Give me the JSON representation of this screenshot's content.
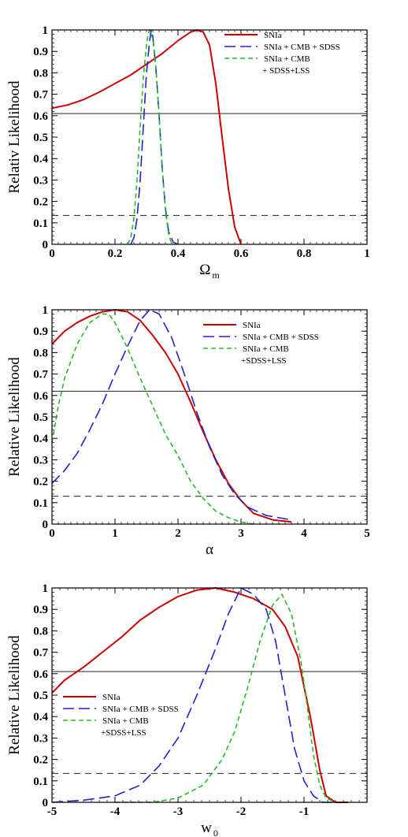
{
  "chart_data": [
    {
      "type": "line",
      "title": "",
      "xlabel": "Ω",
      "xlabel_sub": "m",
      "ylabel": "Relativ Likelihood",
      "xlim": [
        0,
        1
      ],
      "ylim": [
        0,
        1
      ],
      "xticks": [
        0,
        0.2,
        0.4,
        0.6,
        0.8,
        1
      ],
      "xtick_labels": [
        "0",
        "0.2",
        "0.4",
        "0.6",
        "0.8",
        "1"
      ],
      "yticks": [
        0,
        0.1,
        0.2,
        0.3,
        0.4,
        0.5,
        0.6,
        0.7,
        0.8,
        0.9,
        1
      ],
      "ytick_labels": [
        "0",
        "0.1",
        "0.2",
        "0.3",
        "0.4",
        "0.5",
        "0.6",
        "0.7",
        "0.8",
        "0.9",
        "1"
      ],
      "hlines": [
        {
          "y": 0.61,
          "style": "solid"
        },
        {
          "y": 0.135,
          "style": "dashed"
        }
      ],
      "legend": {
        "position": "top-right"
      },
      "series": [
        {
          "name": "SNIa",
          "color": "#cc0000",
          "dash": "solid",
          "points": [
            [
              0,
              0.635
            ],
            [
              0.05,
              0.65
            ],
            [
              0.1,
              0.675
            ],
            [
              0.15,
              0.71
            ],
            [
              0.2,
              0.75
            ],
            [
              0.25,
              0.79
            ],
            [
              0.3,
              0.84
            ],
            [
              0.35,
              0.89
            ],
            [
              0.4,
              0.95
            ],
            [
              0.44,
              0.99
            ],
            [
              0.46,
              1.0
            ],
            [
              0.48,
              0.99
            ],
            [
              0.5,
              0.93
            ],
            [
              0.52,
              0.75
            ],
            [
              0.54,
              0.5
            ],
            [
              0.56,
              0.26
            ],
            [
              0.58,
              0.08
            ],
            [
              0.6,
              0.0
            ]
          ]
        },
        {
          "name": "SNIa + CMB + SDSS",
          "color": "#2222cc",
          "dash": "long",
          "points": [
            [
              0.25,
              0.0
            ],
            [
              0.26,
              0.03
            ],
            [
              0.27,
              0.12
            ],
            [
              0.28,
              0.3
            ],
            [
              0.29,
              0.55
            ],
            [
              0.3,
              0.8
            ],
            [
              0.31,
              0.95
            ],
            [
              0.315,
              1.0
            ],
            [
              0.32,
              0.97
            ],
            [
              0.33,
              0.82
            ],
            [
              0.34,
              0.6
            ],
            [
              0.35,
              0.35
            ],
            [
              0.36,
              0.17
            ],
            [
              0.37,
              0.06
            ],
            [
              0.385,
              0.01
            ],
            [
              0.4,
              0.0
            ]
          ]
        },
        {
          "name": "SNIa + CMB\n+ SDSS+LSS",
          "color": "#22bb22",
          "dash": "short",
          "points": [
            [
              0.24,
              0.0
            ],
            [
              0.25,
              0.03
            ],
            [
              0.26,
              0.12
            ],
            [
              0.27,
              0.3
            ],
            [
              0.28,
              0.55
            ],
            [
              0.29,
              0.78
            ],
            [
              0.3,
              0.93
            ],
            [
              0.305,
              0.98
            ],
            [
              0.31,
              1.0
            ],
            [
              0.32,
              0.96
            ],
            [
              0.33,
              0.82
            ],
            [
              0.34,
              0.6
            ],
            [
              0.35,
              0.35
            ],
            [
              0.36,
              0.16
            ],
            [
              0.37,
              0.05
            ],
            [
              0.38,
              0.0
            ]
          ]
        }
      ]
    },
    {
      "type": "line",
      "title": "",
      "xlabel": "α",
      "xlabel_sub": "",
      "ylabel": "Relative Likelihood",
      "xlim": [
        0,
        5
      ],
      "ylim": [
        0,
        1
      ],
      "xticks": [
        0,
        1,
        2,
        3,
        4,
        5
      ],
      "xtick_labels": [
        "0",
        "1",
        "2",
        "3",
        "4",
        "5"
      ],
      "yticks": [
        0,
        0.1,
        0.2,
        0.3,
        0.4,
        0.5,
        0.6,
        0.7,
        0.8,
        0.9,
        1
      ],
      "ytick_labels": [
        "0",
        "0.1",
        "0.2",
        "0.3",
        "0.4",
        "0.5",
        "0.6",
        "0.7",
        "0.8",
        "0.9",
        "1"
      ],
      "hlines": [
        {
          "y": 0.62,
          "style": "solid"
        },
        {
          "y": 0.13,
          "style": "dashed"
        }
      ],
      "legend": {
        "position": "top-right"
      },
      "series": [
        {
          "name": "SNIa",
          "color": "#cc0000",
          "dash": "solid",
          "points": [
            [
              0,
              0.84
            ],
            [
              0.2,
              0.9
            ],
            [
              0.4,
              0.94
            ],
            [
              0.6,
              0.97
            ],
            [
              0.8,
              0.99
            ],
            [
              1.0,
              1.0
            ],
            [
              1.2,
              0.99
            ],
            [
              1.4,
              0.95
            ],
            [
              1.6,
              0.88
            ],
            [
              1.8,
              0.8
            ],
            [
              2.0,
              0.7
            ],
            [
              2.2,
              0.57
            ],
            [
              2.4,
              0.43
            ],
            [
              2.6,
              0.3
            ],
            [
              2.8,
              0.19
            ],
            [
              3.0,
              0.11
            ],
            [
              3.2,
              0.05
            ],
            [
              3.5,
              0.02
            ],
            [
              3.8,
              0.01
            ]
          ]
        },
        {
          "name": "SNIa + CMB + SDSS",
          "color": "#2222cc",
          "dash": "long",
          "points": [
            [
              0,
              0.19
            ],
            [
              0.2,
              0.25
            ],
            [
              0.4,
              0.33
            ],
            [
              0.6,
              0.44
            ],
            [
              0.8,
              0.56
            ],
            [
              1.0,
              0.7
            ],
            [
              1.2,
              0.83
            ],
            [
              1.4,
              0.95
            ],
            [
              1.55,
              1.0
            ],
            [
              1.7,
              0.98
            ],
            [
              1.9,
              0.87
            ],
            [
              2.1,
              0.7
            ],
            [
              2.3,
              0.52
            ],
            [
              2.5,
              0.36
            ],
            [
              2.7,
              0.23
            ],
            [
              2.9,
              0.14
            ],
            [
              3.1,
              0.08
            ],
            [
              3.4,
              0.04
            ],
            [
              3.8,
              0.02
            ]
          ]
        },
        {
          "name": "SNIa + CMB\n+SDSS+LSS",
          "color": "#22bb22",
          "dash": "short",
          "points": [
            [
              0,
              0.38
            ],
            [
              0.1,
              0.55
            ],
            [
              0.2,
              0.68
            ],
            [
              0.4,
              0.84
            ],
            [
              0.6,
              0.94
            ],
            [
              0.8,
              0.98
            ],
            [
              0.9,
              0.98
            ],
            [
              1.0,
              0.94
            ],
            [
              1.2,
              0.82
            ],
            [
              1.4,
              0.68
            ],
            [
              1.6,
              0.55
            ],
            [
              1.8,
              0.42
            ],
            [
              2.0,
              0.32
            ],
            [
              2.2,
              0.2
            ],
            [
              2.4,
              0.12
            ],
            [
              2.6,
              0.06
            ],
            [
              2.8,
              0.03
            ],
            [
              3.0,
              0.01
            ],
            [
              3.2,
              0.0
            ]
          ]
        }
      ]
    },
    {
      "type": "line",
      "title": "",
      "xlabel": "w",
      "xlabel_sub": "0",
      "ylabel": "Relative Likelihood",
      "xlim": [
        -5,
        0
      ],
      "ylim": [
        0,
        1
      ],
      "xticks": [
        -5,
        -4,
        -3,
        -2,
        -1
      ],
      "xtick_labels": [
        "-5",
        "-4",
        "-3",
        "-2",
        "-1"
      ],
      "yticks": [
        0,
        0.1,
        0.2,
        0.3,
        0.4,
        0.5,
        0.6,
        0.7,
        0.8,
        0.9,
        1
      ],
      "ytick_labels": [
        "0",
        "0.1",
        "0.2",
        "0.3",
        "0.4",
        "0.5",
        "0.6",
        "0.7",
        "0.8",
        "0.9",
        "1"
      ],
      "hlines": [
        {
          "y": 0.61,
          "style": "solid"
        },
        {
          "y": 0.135,
          "style": "dashed"
        }
      ],
      "legend": {
        "position": "center-left"
      },
      "series": [
        {
          "name": "SNIa",
          "color": "#cc0000",
          "dash": "solid",
          "points": [
            [
              -5,
              0.51
            ],
            [
              -4.8,
              0.57
            ],
            [
              -4.5,
              0.63
            ],
            [
              -4.2,
              0.7
            ],
            [
              -3.9,
              0.77
            ],
            [
              -3.6,
              0.85
            ],
            [
              -3.3,
              0.91
            ],
            [
              -3.0,
              0.96
            ],
            [
              -2.7,
              0.99
            ],
            [
              -2.4,
              1.0
            ],
            [
              -2.1,
              0.98
            ],
            [
              -1.8,
              0.95
            ],
            [
              -1.5,
              0.9
            ],
            [
              -1.3,
              0.82
            ],
            [
              -1.1,
              0.68
            ],
            [
              -0.9,
              0.4
            ],
            [
              -0.75,
              0.15
            ],
            [
              -0.65,
              0.03
            ],
            [
              -0.5,
              0.0
            ],
            [
              -0.3,
              0.0
            ]
          ]
        },
        {
          "name": "SNIa + CMB + SDSS",
          "color": "#2222cc",
          "dash": "long",
          "points": [
            [
              -5,
              0.0
            ],
            [
              -4.5,
              0.01
            ],
            [
              -4.0,
              0.03
            ],
            [
              -3.6,
              0.08
            ],
            [
              -3.3,
              0.17
            ],
            [
              -3.0,
              0.3
            ],
            [
              -2.7,
              0.5
            ],
            [
              -2.4,
              0.72
            ],
            [
              -2.2,
              0.88
            ],
            [
              -2.0,
              1.0
            ],
            [
              -1.8,
              0.97
            ],
            [
              -1.6,
              0.9
            ],
            [
              -1.45,
              0.75
            ],
            [
              -1.3,
              0.5
            ],
            [
              -1.15,
              0.25
            ],
            [
              -1.0,
              0.1
            ],
            [
              -0.85,
              0.03
            ],
            [
              -0.7,
              0.0
            ],
            [
              -0.5,
              0.0
            ]
          ]
        },
        {
          "name": "SNIa + CMB\n+SDSS+LSS",
          "color": "#22bb22",
          "dash": "short",
          "points": [
            [
              -4,
              0.0
            ],
            [
              -3.4,
              0.0
            ],
            [
              -3.0,
              0.02
            ],
            [
              -2.6,
              0.08
            ],
            [
              -2.3,
              0.2
            ],
            [
              -2.1,
              0.33
            ],
            [
              -1.9,
              0.53
            ],
            [
              -1.7,
              0.75
            ],
            [
              -1.5,
              0.92
            ],
            [
              -1.35,
              0.97
            ],
            [
              -1.2,
              0.88
            ],
            [
              -1.05,
              0.66
            ],
            [
              -0.95,
              0.45
            ],
            [
              -0.85,
              0.22
            ],
            [
              -0.75,
              0.08
            ],
            [
              -0.65,
              0.02
            ],
            [
              -0.5,
              0.0
            ]
          ]
        }
      ]
    }
  ]
}
